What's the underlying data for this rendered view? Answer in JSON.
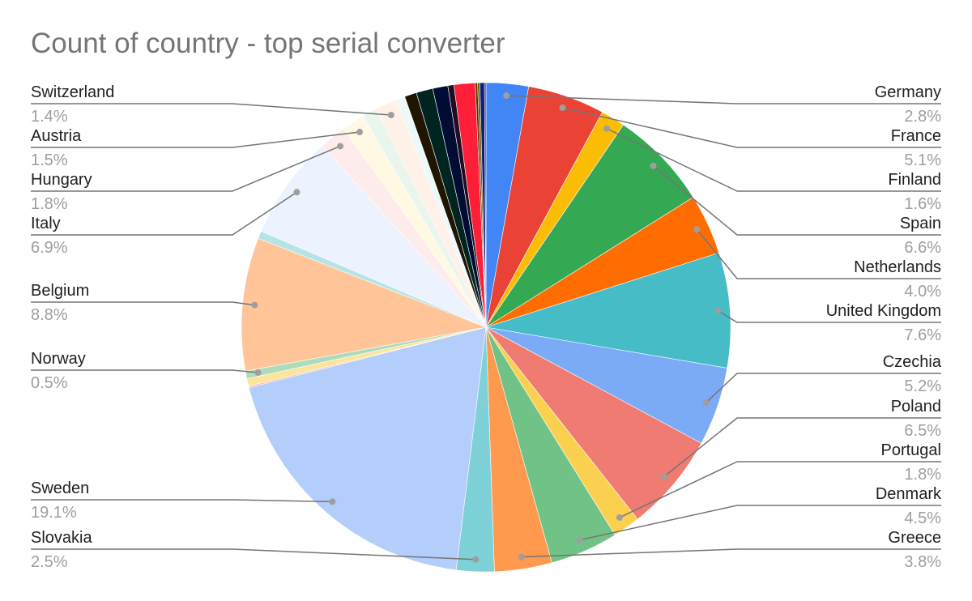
{
  "chart_data": {
    "type": "pie",
    "title": "Count of country - top serial converter",
    "legend": "labels",
    "slices": [
      {
        "label": "Germany",
        "value": 2.8,
        "color": "#4285f4"
      },
      {
        "label": "France",
        "value": 5.1,
        "color": "#ea4335"
      },
      {
        "label": "Finland",
        "value": 1.6,
        "color": "#fbbc04"
      },
      {
        "label": "Spain",
        "value": 6.6,
        "color": "#34a853"
      },
      {
        "label": "Netherlands",
        "value": 4.0,
        "color": "#ff6d01"
      },
      {
        "label": "United Kingdom",
        "value": 7.6,
        "color": "#46bdc6"
      },
      {
        "label": "Czechia",
        "value": 5.2,
        "color": "#7baaf7"
      },
      {
        "label": "Poland",
        "value": 6.5,
        "color": "#f07b72"
      },
      {
        "label": "Portugal",
        "value": 1.8,
        "color": "#fcd04f"
      },
      {
        "label": "Denmark",
        "value": 4.5,
        "color": "#71c287"
      },
      {
        "label": "Greece",
        "value": 3.8,
        "color": "#ff994d"
      },
      {
        "label": "Slovakia",
        "value": 2.5,
        "color": "#7ed1d7"
      },
      {
        "label": "Sweden",
        "value": 19.1,
        "color": "#b3cefb"
      },
      {
        "label": null,
        "value": 0.1,
        "color": "#f7b4ae"
      },
      {
        "label": null,
        "value": 0.5,
        "color": "#fde49b"
      },
      {
        "label": "Norway",
        "value": 0.5,
        "color": "#aedcba"
      },
      {
        "label": "Belgium",
        "value": 8.8,
        "color": "#ffc599"
      },
      {
        "label": null,
        "value": 0.5,
        "color": "#b5e3e6"
      },
      {
        "label": "Italy",
        "value": 6.9,
        "color": "#ecf2fe"
      },
      {
        "label": "Hungary",
        "value": 1.8,
        "color": "#fdeceb"
      },
      {
        "label": "Austria",
        "value": 1.5,
        "color": "#fff8e3"
      },
      {
        "label": null,
        "value": 1.0,
        "color": "#e9f5ed"
      },
      {
        "label": "Switzerland",
        "value": 1.4,
        "color": "#fff0e8"
      },
      {
        "label": null,
        "value": 0.6,
        "color": "#ecf8f9"
      },
      {
        "label": null,
        "value": 0.8,
        "color": "#1f1500"
      },
      {
        "label": null,
        "value": 1.1,
        "color": "#002420"
      },
      {
        "label": null,
        "value": 1.0,
        "color": "#000c33"
      },
      {
        "label": null,
        "value": 0.4,
        "color": "#200d23"
      },
      {
        "label": null,
        "value": 1.4,
        "color": "#ff1e38"
      },
      {
        "label": null,
        "value": 0.15,
        "color": "#5a2b00"
      },
      {
        "label": null,
        "value": 0.15,
        "color": "#6b5a00"
      },
      {
        "label": null,
        "value": 0.3,
        "color": "#0a2080"
      },
      {
        "label": null,
        "value": 0.1,
        "color": "#5e2a5c"
      }
    ]
  }
}
